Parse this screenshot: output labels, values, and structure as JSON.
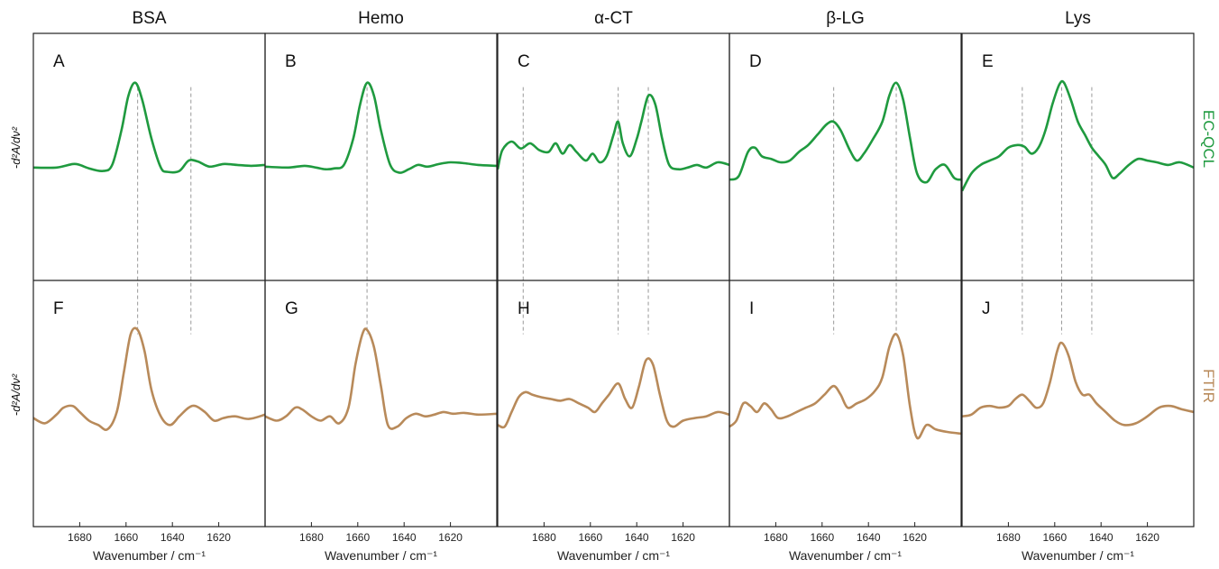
{
  "colors": {
    "ecqcl": "#1f9a3f",
    "ftir": "#b88a5a",
    "guide": "#999999",
    "frame": "#222222"
  },
  "columns": [
    {
      "title": "BSA"
    },
    {
      "title": "Hemo"
    },
    {
      "title": "α-CT"
    },
    {
      "title": "β-LG"
    },
    {
      "title": "Lys"
    }
  ],
  "rows": [
    {
      "label": "EC-QCL",
      "ylabel": "-d²A/dν²"
    },
    {
      "label": "FTIR",
      "ylabel": "-d²A/dν²"
    }
  ],
  "xlabel": "Wavenumber / cm⁻¹",
  "xticks": [
    "1680",
    "1660",
    "1640",
    "1620"
  ],
  "chart_data": [
    {
      "type": "line",
      "panel": "A",
      "column": "BSA",
      "row": "EC-QCL",
      "xlim": [
        1700,
        1600
      ],
      "x": [
        1700,
        1690,
        1683,
        1680,
        1676,
        1670,
        1666,
        1662,
        1659,
        1656,
        1653,
        1649,
        1645,
        1642,
        1637,
        1633,
        1629,
        1624,
        1618,
        1612,
        1606,
        1600
      ],
      "y": [
        0.02,
        0.02,
        0.06,
        0.05,
        0.01,
        -0.02,
        0.05,
        0.45,
        0.85,
        1.0,
        0.8,
        0.35,
        0.02,
        -0.03,
        -0.02,
        0.1,
        0.09,
        0.03,
        0.06,
        0.05,
        0.04,
        0.05
      ],
      "guides_cm1": [
        1655,
        1632
      ]
    },
    {
      "type": "line",
      "panel": "B",
      "column": "Hemo",
      "row": "EC-QCL",
      "xlim": [
        1700,
        1600
      ],
      "x": [
        1700,
        1690,
        1683,
        1678,
        1674,
        1670,
        1666,
        1662,
        1659,
        1656,
        1653,
        1650,
        1646,
        1642,
        1638,
        1634,
        1630,
        1625,
        1620,
        1614,
        1608,
        1600
      ],
      "y": [
        0.03,
        0.02,
        0.04,
        0.02,
        0.0,
        0.01,
        0.05,
        0.35,
        0.75,
        1.0,
        0.85,
        0.45,
        0.05,
        -0.04,
        0.0,
        0.05,
        0.03,
        0.06,
        0.08,
        0.07,
        0.05,
        0.04
      ],
      "guides_cm1": [
        1656
      ]
    },
    {
      "type": "line",
      "panel": "C",
      "column": "α-CT",
      "row": "EC-QCL",
      "xlim": [
        1700,
        1600
      ],
      "x": [
        1700,
        1698,
        1694,
        1690,
        1686,
        1682,
        1678,
        1675,
        1672,
        1669,
        1666,
        1662,
        1659,
        1656,
        1653,
        1650,
        1648,
        1646,
        1643,
        1640,
        1638,
        1635,
        1632,
        1629,
        1626,
        1622,
        1618,
        1614,
        1610,
        1605,
        1600
      ],
      "y": [
        0.0,
        0.22,
        0.32,
        0.24,
        0.3,
        0.22,
        0.2,
        0.3,
        0.18,
        0.28,
        0.2,
        0.1,
        0.18,
        0.08,
        0.15,
        0.4,
        0.55,
        0.3,
        0.15,
        0.35,
        0.55,
        0.85,
        0.75,
        0.35,
        0.05,
        0.0,
        0.02,
        0.05,
        0.02,
        0.08,
        0.05
      ],
      "guides_cm1": [
        1689,
        1648,
        1635
      ]
    },
    {
      "type": "line",
      "panel": "D",
      "column": "β-LG",
      "row": "EC-QCL",
      "xlim": [
        1700,
        1600
      ],
      "x": [
        1700,
        1696,
        1692,
        1689,
        1686,
        1682,
        1678,
        1674,
        1670,
        1666,
        1662,
        1658,
        1655,
        1652,
        1648,
        1645,
        1642,
        1638,
        1634,
        1631,
        1628,
        1625,
        1622,
        1619,
        1615,
        1611,
        1607,
        1603,
        1600
      ],
      "y": [
        -0.12,
        -0.08,
        0.2,
        0.25,
        0.15,
        0.12,
        0.08,
        0.1,
        0.2,
        0.28,
        0.4,
        0.52,
        0.55,
        0.45,
        0.22,
        0.1,
        0.18,
        0.35,
        0.55,
        0.85,
        1.0,
        0.8,
        0.35,
        -0.05,
        -0.15,
        0.0,
        0.05,
        -0.1,
        -0.12
      ],
      "guides_cm1": [
        1655,
        1628
      ]
    },
    {
      "type": "line",
      "panel": "E",
      "column": "Lys",
      "row": "EC-QCL",
      "xlim": [
        1700,
        1600
      ],
      "x": [
        1700,
        1696,
        1692,
        1688,
        1684,
        1680,
        1676,
        1673,
        1670,
        1667,
        1664,
        1661,
        1658,
        1656,
        1653,
        1650,
        1647,
        1644,
        1641,
        1638,
        1635,
        1632,
        1628,
        1624,
        1620,
        1616,
        1611,
        1606,
        1600
      ],
      "y": [
        -0.25,
        -0.05,
        0.05,
        0.1,
        0.15,
        0.25,
        0.28,
        0.26,
        0.18,
        0.25,
        0.45,
        0.75,
        0.98,
        1.0,
        0.8,
        0.55,
        0.4,
        0.25,
        0.15,
        0.05,
        -0.1,
        -0.05,
        0.05,
        0.12,
        0.1,
        0.08,
        0.05,
        0.08,
        0.02
      ],
      "guides_cm1": [
        1674,
        1657,
        1644
      ]
    },
    {
      "type": "line",
      "panel": "F",
      "column": "BSA",
      "row": "FTIR",
      "xlim": [
        1700,
        1600
      ],
      "x": [
        1700,
        1695,
        1690,
        1687,
        1683,
        1680,
        1676,
        1672,
        1668,
        1664,
        1661,
        1658,
        1655,
        1652,
        1649,
        1645,
        1641,
        1637,
        1633,
        1630,
        1626,
        1622,
        1618,
        1613,
        1607,
        1600
      ],
      "y": [
        -0.02,
        -0.08,
        0.02,
        0.1,
        0.12,
        0.05,
        -0.05,
        -0.1,
        -0.15,
        0.05,
        0.5,
        0.95,
        1.0,
        0.75,
        0.3,
        0.0,
        -0.1,
        0.0,
        0.1,
        0.12,
        0.05,
        -0.05,
        -0.02,
        0.0,
        -0.03,
        0.02
      ],
      "guides_cm1": [
        1655,
        1632
      ]
    },
    {
      "type": "line",
      "panel": "G",
      "column": "Hemo",
      "row": "FTIR",
      "xlim": [
        1700,
        1600
      ],
      "x": [
        1700,
        1695,
        1691,
        1687,
        1684,
        1680,
        1676,
        1672,
        1668,
        1664,
        1661,
        1658,
        1656,
        1653,
        1650,
        1647,
        1643,
        1639,
        1635,
        1631,
        1627,
        1623,
        1619,
        1614,
        1608,
        1600
      ],
      "y": [
        0.0,
        -0.05,
        0.0,
        0.1,
        0.08,
        0.0,
        -0.05,
        0.0,
        -0.08,
        0.1,
        0.6,
        0.95,
        1.0,
        0.8,
        0.35,
        -0.1,
        -0.12,
        -0.02,
        0.03,
        0.0,
        0.02,
        0.05,
        0.03,
        0.04,
        0.02,
        0.03
      ],
      "guides_cm1": [
        1656
      ]
    },
    {
      "type": "line",
      "panel": "H",
      "column": "α-CT",
      "row": "FTIR",
      "xlim": [
        1700,
        1600
      ],
      "x": [
        1700,
        1697,
        1694,
        1691,
        1688,
        1685,
        1681,
        1677,
        1673,
        1669,
        1665,
        1661,
        1658,
        1655,
        1652,
        1648,
        1645,
        1642,
        1639,
        1636,
        1633,
        1630,
        1627,
        1624,
        1620,
        1615,
        1610,
        1605,
        1600
      ],
      "y": [
        -0.1,
        -0.12,
        0.05,
        0.22,
        0.28,
        0.25,
        0.22,
        0.2,
        0.18,
        0.2,
        0.15,
        0.1,
        0.05,
        0.15,
        0.25,
        0.38,
        0.2,
        0.1,
        0.35,
        0.65,
        0.6,
        0.25,
        -0.05,
        -0.12,
        -0.05,
        -0.02,
        0.0,
        0.05,
        0.02
      ],
      "guides_cm1": [
        1689,
        1648,
        1635
      ]
    },
    {
      "type": "line",
      "panel": "I",
      "column": "β-LG",
      "row": "FTIR",
      "xlim": [
        1700,
        1600
      ],
      "x": [
        1700,
        1697,
        1694,
        1691,
        1688,
        1685,
        1682,
        1679,
        1675,
        1671,
        1667,
        1663,
        1659,
        1655,
        1652,
        1649,
        1645,
        1641,
        1637,
        1634,
        1631,
        1628,
        1625,
        1622,
        1619,
        1615,
        1611,
        1606,
        1600
      ],
      "y": [
        -0.12,
        -0.05,
        0.15,
        0.12,
        0.05,
        0.15,
        0.08,
        -0.02,
        0.0,
        0.05,
        0.1,
        0.15,
        0.25,
        0.35,
        0.25,
        0.1,
        0.15,
        0.2,
        0.3,
        0.45,
        0.8,
        0.95,
        0.7,
        0.1,
        -0.25,
        -0.1,
        -0.15,
        -0.18,
        -0.2
      ],
      "guides_cm1": [
        1655,
        1628
      ]
    },
    {
      "type": "line",
      "panel": "J",
      "column": "Lys",
      "row": "FTIR",
      "xlim": [
        1700,
        1600
      ],
      "x": [
        1700,
        1696,
        1692,
        1688,
        1684,
        1680,
        1677,
        1674,
        1671,
        1668,
        1665,
        1662,
        1659,
        1657,
        1654,
        1651,
        1648,
        1645,
        1642,
        1638,
        1634,
        1630,
        1625,
        1620,
        1615,
        1610,
        1605,
        1600
      ],
      "y": [
        0.0,
        0.02,
        0.1,
        0.12,
        0.1,
        0.12,
        0.2,
        0.25,
        0.18,
        0.1,
        0.15,
        0.4,
        0.75,
        0.85,
        0.7,
        0.4,
        0.25,
        0.25,
        0.15,
        0.05,
        -0.05,
        -0.1,
        -0.08,
        0.0,
        0.1,
        0.12,
        0.08,
        0.05
      ],
      "guides_cm1": [
        1674,
        1657,
        1644
      ]
    }
  ]
}
